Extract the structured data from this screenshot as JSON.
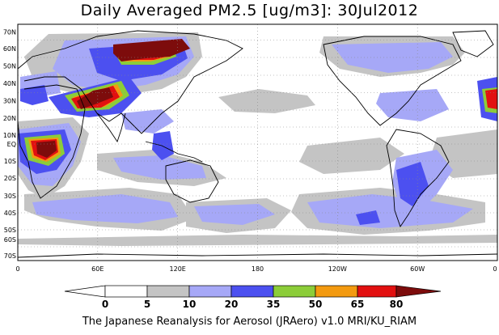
{
  "title": "Daily Averaged PM2.5 [ug/m3]: 30Jul2012",
  "footer": "The Japanese Reanalysis for Aerosol (JRAero) v1.0 MRI/KU_RIAM",
  "lat_labels": [
    "70N",
    "60N",
    "50N",
    "40N",
    "30N",
    "20N",
    "10N",
    "EQ",
    "10S",
    "20S",
    "30S",
    "40S",
    "50S",
    "60S",
    "70S"
  ],
  "lon_labels": [
    "0",
    "60E",
    "120E",
    "180",
    "120W",
    "60W",
    "0"
  ],
  "colorbar": {
    "ticks": [
      "0",
      "5",
      "10",
      "20",
      "35",
      "50",
      "65",
      "80"
    ],
    "colors": [
      "#ffffff",
      "#c4c4c4",
      "#a6a8f7",
      "#4c50f0",
      "#8ccd39",
      "#f39a10",
      "#e21010",
      "#7d0c0c"
    ]
  }
}
